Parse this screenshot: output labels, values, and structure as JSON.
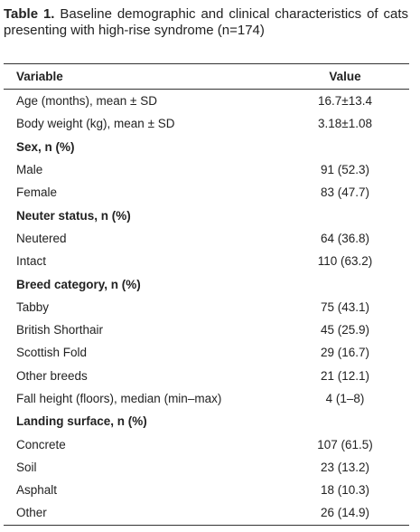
{
  "caption": {
    "label": "Table 1.",
    "text": "Baseline demographic and clinical characteristics of cats presenting with high-rise syndrome (n=174)"
  },
  "table": {
    "columns": [
      "Variable",
      "Value"
    ],
    "rows": [
      {
        "label": "Age (months), mean ± SD",
        "value": "16.7±13.4"
      },
      {
        "label": "Body weight (kg), mean ± SD",
        "value": "3.18±1.08"
      },
      {
        "label": "Sex, n (%)",
        "section": true
      },
      {
        "label": "Male",
        "value": "91 (52.3)"
      },
      {
        "label": "Female",
        "value": "83 (47.7)"
      },
      {
        "label": "Neuter status, n (%)",
        "section": true
      },
      {
        "label": "Neutered",
        "value": "64 (36.8)"
      },
      {
        "label": "Intact",
        "value": "110 (63.2)"
      },
      {
        "label": "Breed category, n (%)",
        "section": true
      },
      {
        "label": "Tabby",
        "value": "75 (43.1)"
      },
      {
        "label": "British Shorthair",
        "value": "45 (25.9)"
      },
      {
        "label": "Scottish Fold",
        "value": "29 (16.7)"
      },
      {
        "label": "Other breeds",
        "value": "21 (12.1)"
      },
      {
        "label": "Fall height (floors), median (min–max)",
        "value": "4 (1–8)"
      },
      {
        "label": "Landing surface, n (%)",
        "section": true
      },
      {
        "label": "Concrete",
        "value": "107 (61.5)"
      },
      {
        "label": "Soil",
        "value": "23 (13.2)"
      },
      {
        "label": "Asphalt",
        "value": "18 (10.3)"
      },
      {
        "label": "Other",
        "value": "26 (14.9)"
      }
    ]
  }
}
